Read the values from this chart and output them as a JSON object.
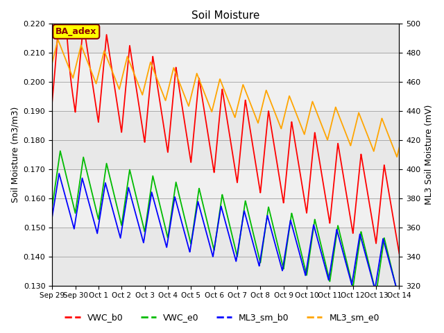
{
  "title": "Soil Moisture",
  "ylabel_left": "Soil Moisture (m3/m3)",
  "ylabel_right": "ML3 Soil Moisture (mV)",
  "ylim_left": [
    0.13,
    0.22
  ],
  "ylim_right": [
    320,
    500
  ],
  "yticks_left": [
    0.13,
    0.14,
    0.15,
    0.16,
    0.17,
    0.18,
    0.19,
    0.2,
    0.21,
    0.22
  ],
  "yticks_right": [
    320,
    340,
    360,
    380,
    400,
    420,
    440,
    460,
    480,
    500
  ],
  "xtick_labels": [
    "Sep 29",
    "Sep 30",
    "Oct 1",
    "Oct 2",
    "Oct 3",
    "Oct 4",
    "Oct 5",
    "Oct 6",
    "Oct 7",
    "Oct 8",
    "Oct 9",
    "Oct 10",
    "Oct 11",
    "Oct 12",
    "Oct 13",
    "Oct 14"
  ],
  "colors": {
    "VWC_b0": "#FF0000",
    "VWC_e0": "#00BB00",
    "ML3_sm_b0": "#0000FF",
    "ML3_sm_e0": "#FFA500"
  },
  "annotation_text": "BA_adex",
  "annotation_color": "#8B0000",
  "annotation_bg": "#FFFF00",
  "background_bands": [
    "#E8E8E8",
    "#F0F0F0"
  ],
  "band_edges_left": [
    0.13,
    0.15,
    0.17,
    0.19,
    0.21,
    0.23
  ],
  "grid_color": "#AAAAAA",
  "fig_bg": "#FFFFFF",
  "linewidth": 1.3
}
